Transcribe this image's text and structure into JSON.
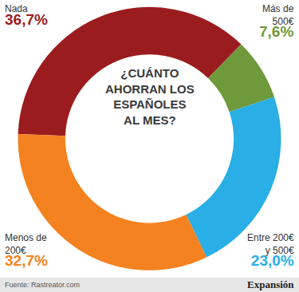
{
  "chart_data": {
    "type": "pie",
    "title": "¿CUÁNTO AHORRAN LOS ESPAÑOLES AL MES?",
    "categories": [
      "Nada",
      "Más de 500€",
      "Entre 200€ y 500€",
      "Menos de 200€"
    ],
    "values": [
      36.7,
      7.6,
      23.0,
      32.7
    ],
    "value_labels": [
      "36,7%",
      "7,6%",
      "23,0%",
      "32,7%"
    ],
    "colors": [
      "#9b1c1f",
      "#6f9a3b",
      "#2aaee6",
      "#f58220"
    ],
    "data_labels": true,
    "annotations": [
      "Fuente: Rastreator.com",
      "Expansión"
    ]
  }
}
